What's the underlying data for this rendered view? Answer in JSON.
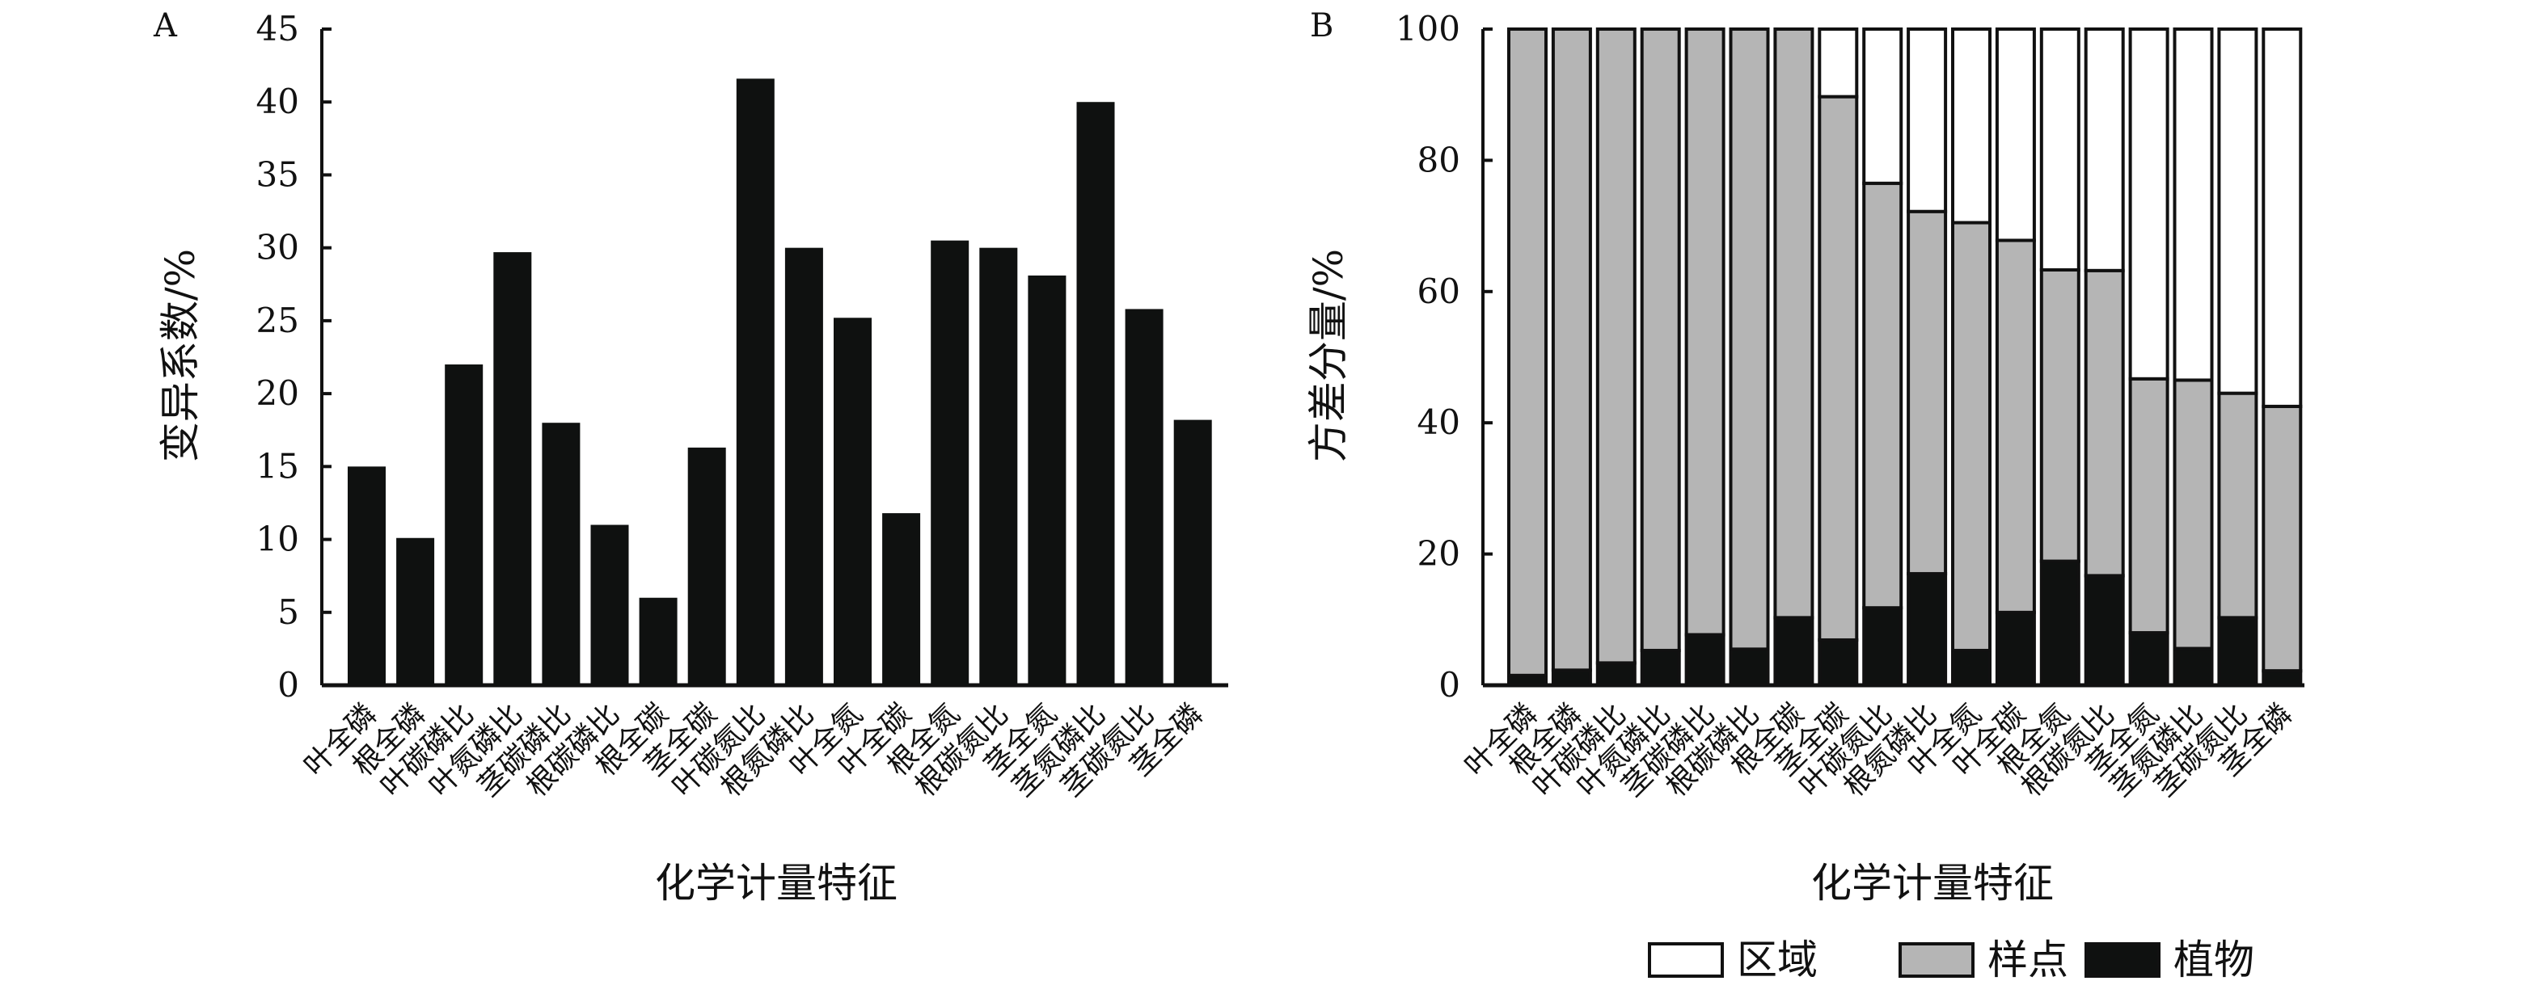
{
  "chart_data": [
    {
      "panel": "A",
      "type": "bar",
      "categories": [
        "叶全磷",
        "根全磷",
        "叶碳磷比",
        "叶氮磷比",
        "茎碳磷比",
        "根碳磷比",
        "根全碳",
        "茎全碳",
        "叶碳氮比",
        "根氮磷比",
        "叶全氮",
        "叶全碳",
        "根全氮",
        "根碳氮比",
        "茎全氮",
        "茎氮磷比",
        "茎碳氮比",
        "茎全磷"
      ],
      "values": [
        15.0,
        10.1,
        22.0,
        29.7,
        18.0,
        11.0,
        6.0,
        16.3,
        41.6,
        30.0,
        25.2,
        11.8,
        30.5,
        30.0,
        28.1,
        40.0,
        25.8,
        18.2
      ],
      "xlabel": "化学计量特征",
      "ylabel": "变异系数/%",
      "ylim": [
        0,
        45
      ],
      "yticks": [
        "0",
        "5",
        "10",
        "15",
        "20",
        "25",
        "30",
        "35",
        "40",
        "45"
      ],
      "color": "#0f1110",
      "grid": false
    },
    {
      "panel": "B",
      "type": "bar",
      "stacked": true,
      "categories": [
        "叶全磷",
        "根全磷",
        "叶碳磷比",
        "叶氮磷比",
        "茎碳磷比",
        "根碳磷比",
        "根全碳",
        "茎全碳",
        "叶碳氮比",
        "根氮磷比",
        "叶全氮",
        "叶全碳",
        "根全氮",
        "根碳氮比",
        "茎全氮",
        "茎氮磷比",
        "茎碳氮比",
        "茎全磷"
      ],
      "series": [
        {
          "name": "植物",
          "color": "#0f1110",
          "values": [
            1.5,
            2.3,
            3.4,
            5.3,
            7.7,
            5.5,
            10.3,
            6.9,
            11.8,
            17.0,
            5.3,
            11.1,
            18.9,
            16.7,
            8.0,
            5.6,
            10.3,
            2.2
          ]
        },
        {
          "name": "样点",
          "color": "#b5b5b5",
          "values": [
            98.5,
            97.7,
            96.6,
            94.7,
            92.3,
            94.5,
            89.7,
            82.8,
            64.7,
            55.2,
            65.2,
            56.7,
            44.4,
            46.5,
            38.7,
            40.9,
            34.2,
            40.3
          ]
        },
        {
          "name": "区域",
          "color": "#ffffff",
          "values": [
            0,
            0,
            0,
            0,
            0,
            0,
            0,
            10.3,
            23.5,
            27.8,
            29.5,
            32.2,
            36.7,
            36.8,
            53.3,
            53.5,
            55.5,
            57.5
          ]
        }
      ],
      "xlabel": "化学计量特征",
      "ylabel": "方差分量/%",
      "ylim": [
        0,
        100
      ],
      "yticks": [
        "0",
        "20",
        "40",
        "60",
        "80",
        "100"
      ],
      "legend_position": "bottom-right",
      "legend_order": [
        "区域",
        "样点",
        "植物"
      ],
      "grid": false
    }
  ]
}
